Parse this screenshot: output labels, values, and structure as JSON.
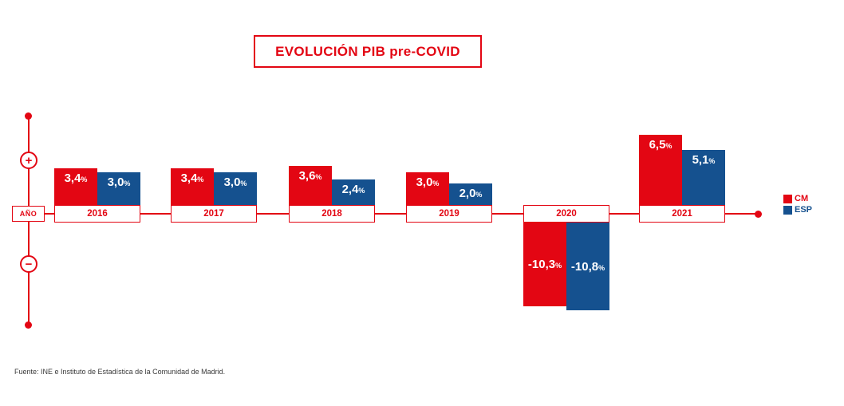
{
  "title": "EVOLUCIÓN PIB pre-COVID",
  "axis": {
    "plus_label": "+",
    "minus_label": "−",
    "year_box_label": "AÑO"
  },
  "legend": {
    "items": [
      {
        "label": "CM",
        "color": "#e30613"
      },
      {
        "label": "ESP",
        "color": "#15518f"
      }
    ]
  },
  "percent_sign": "%",
  "footer": {
    "source": "Fuente: INE e Instituto de Estadística de la Comunidad de Madrid."
  },
  "chart_data": {
    "type": "bar",
    "title": "EVOLUCIÓN PIB pre-COVID",
    "categories": [
      "2016",
      "2017",
      "2018",
      "2019",
      "2020",
      "2021"
    ],
    "series": [
      {
        "name": "CM",
        "color": "#e30613",
        "values": [
          3.4,
          3.4,
          3.6,
          3.0,
          -10.3,
          6.5
        ],
        "labels": [
          "3,4",
          "3,4",
          "3,6",
          "3,0",
          "-10,3",
          "6,5"
        ]
      },
      {
        "name": "ESP",
        "color": "#15518f",
        "values": [
          3.0,
          3.0,
          2.4,
          2.0,
          -10.8,
          5.1
        ],
        "labels": [
          "3,0",
          "3,0",
          "2,4",
          "2,0",
          "-10,8",
          "5,1"
        ]
      }
    ],
    "unit": "%",
    "baseline": 0,
    "grid": false,
    "legend_position": "right",
    "legend_entries": [
      "CM",
      "ESP"
    ]
  }
}
